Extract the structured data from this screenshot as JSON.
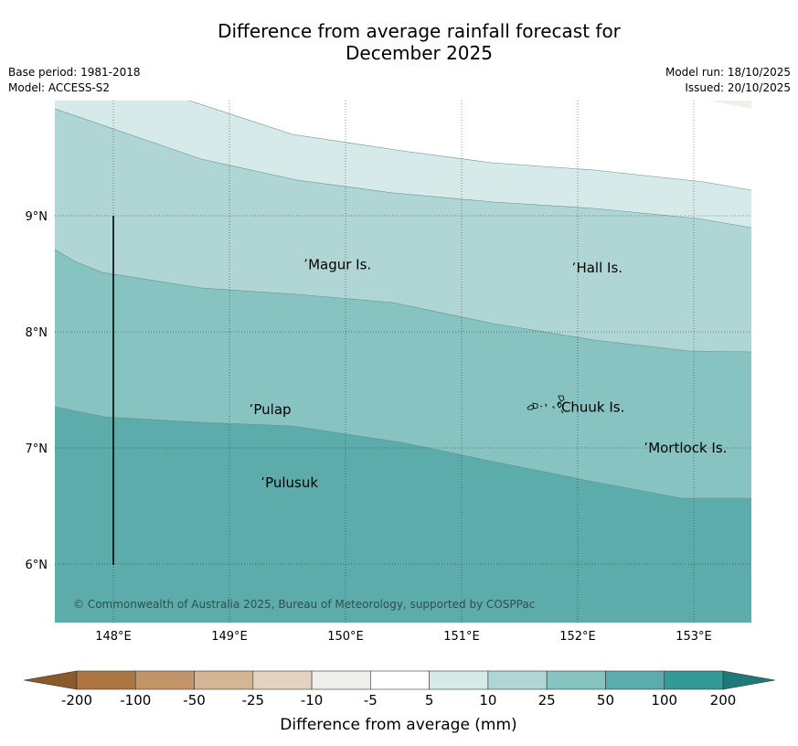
{
  "title": {
    "line1": "Difference from average rainfall forecast for",
    "line2": "December 2025"
  },
  "info": {
    "base_period": "Base period: 1981-2018",
    "model": "Model: ACCESS-S2",
    "model_run": "Model run: 18/10/2025",
    "issued": "Issued: 20/10/2025"
  },
  "map": {
    "x_ticks": [
      "148°E",
      "149°E",
      "150°E",
      "151°E",
      "152°E",
      "153°E"
    ],
    "y_ticks": [
      "9°N",
      "8°N",
      "7°N",
      "6°N"
    ],
    "lon_range": [
      147.5,
      153.5
    ],
    "lat_range": [
      5.5,
      10.0
    ],
    "places": [
      {
        "name": "Magur Is.",
        "lon": 149.67,
        "lat": 8.58
      },
      {
        "name": "Hall Is.",
        "lon": 151.98,
        "lat": 8.55
      },
      {
        "name": "Pulap",
        "lon": 149.2,
        "lat": 7.33
      },
      {
        "name": "Chuuk Is.",
        "lon": 151.85,
        "lat": 7.35
      },
      {
        "name": "Mortlock Is.",
        "lon": 152.6,
        "lat": 7.0
      },
      {
        "name": "Pulusuk",
        "lon": 149.3,
        "lat": 6.7
      }
    ],
    "copyright": "© Commonwealth of Australia 2025, Bureau of Meteorology, supported by COSPPac"
  },
  "colorbar": {
    "ticks": [
      "-200",
      "-100",
      "-50",
      "-25",
      "-10",
      "-5",
      "5",
      "10",
      "25",
      "50",
      "100",
      "200"
    ],
    "colors": [
      "#ad7540",
      "#c39468",
      "#d5b594",
      "#e4d3c1",
      "#f1efea",
      "#ffffff",
      "#d6eae9",
      "#afd6d5",
      "#86c3c1",
      "#5bacac",
      "#339a98"
    ],
    "extend_low_color": "#8a5a2b",
    "extend_high_color": "#1f7a77",
    "label": "Difference from average (mm)"
  },
  "palette": {
    "band_5_10": "#d6eae9",
    "band_10_25": "#afd6d5",
    "band_25_50": "#86c3c1",
    "band_50_100": "#5cacac",
    "band_neg": "#f1efea",
    "grid": "#2a2a2a",
    "contour": "#6a8e8d"
  }
}
